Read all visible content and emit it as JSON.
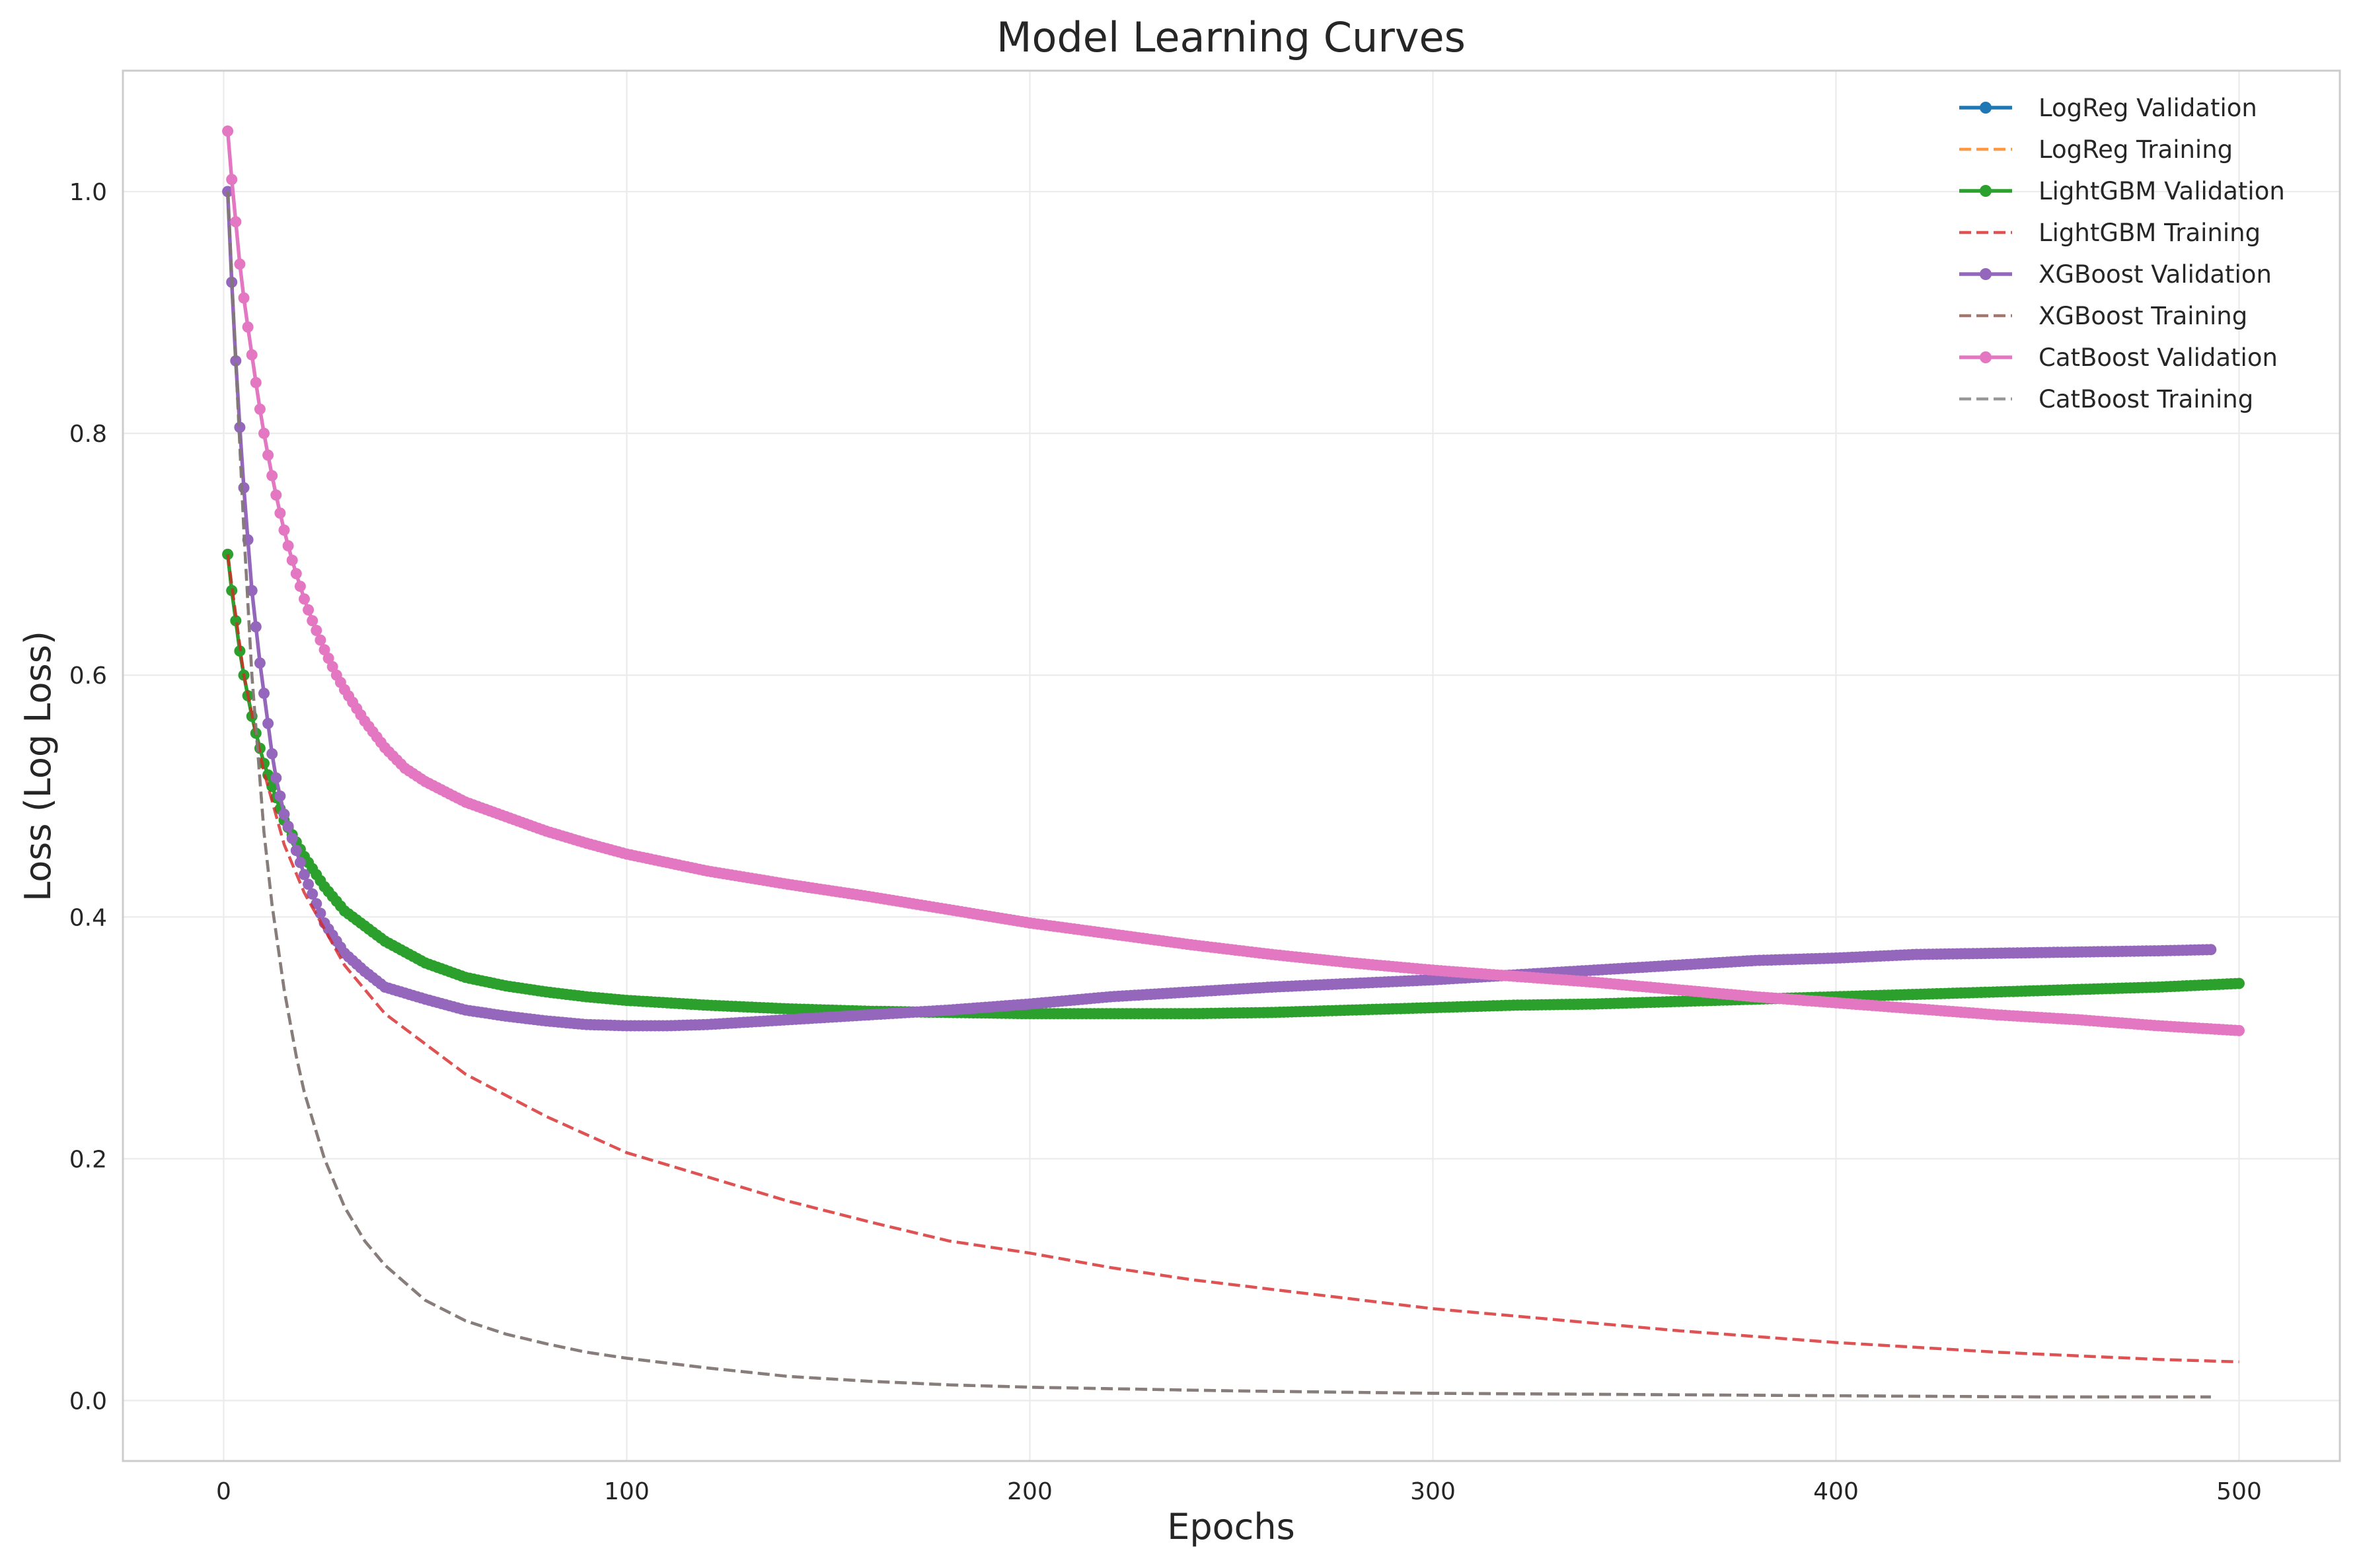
{
  "chart_data": {
    "type": "line",
    "title": "Model Learning Curves",
    "xlabel": "Epochs",
    "ylabel": "Loss (Log Loss)",
    "xlim": [
      -25,
      525
    ],
    "ylim": [
      -0.05,
      1.1
    ],
    "xticks": [
      0,
      100,
      200,
      300,
      400,
      500
    ],
    "xtick_labels": [
      "0",
      "100",
      "200",
      "300",
      "400",
      "500"
    ],
    "yticks": [
      0.0,
      0.2,
      0.4,
      0.6,
      0.8,
      1.0
    ],
    "ytick_labels": [
      "0.0",
      "0.2",
      "0.4",
      "0.6",
      "0.8",
      "1.0"
    ],
    "grid": true,
    "legend_position": "top-right",
    "series": [
      {
        "name": "LogReg Validation",
        "color": "#1f77b4",
        "style": "solid-marker",
        "x": [],
        "y": []
      },
      {
        "name": "LogReg Training",
        "color": "#ff7f0e",
        "style": "dashed",
        "x": [],
        "y": []
      },
      {
        "name": "LightGBM Validation",
        "color": "#2ca02c",
        "style": "solid-marker",
        "x": [
          1,
          2,
          3,
          4,
          5,
          6,
          7,
          8,
          10,
          12,
          15,
          20,
          25,
          30,
          40,
          50,
          60,
          70,
          80,
          90,
          100,
          120,
          140,
          160,
          180,
          200,
          220,
          240,
          260,
          280,
          300,
          320,
          340,
          360,
          380,
          400,
          420,
          440,
          460,
          480,
          500
        ],
        "y": [
          0.7,
          0.67,
          0.645,
          0.62,
          0.6,
          0.583,
          0.566,
          0.552,
          0.527,
          0.508,
          0.48,
          0.45,
          0.425,
          0.405,
          0.38,
          0.362,
          0.35,
          0.343,
          0.338,
          0.334,
          0.331,
          0.327,
          0.324,
          0.322,
          0.321,
          0.32,
          0.32,
          0.32,
          0.321,
          0.323,
          0.325,
          0.327,
          0.328,
          0.33,
          0.332,
          0.334,
          0.336,
          0.338,
          0.34,
          0.342,
          0.345
        ]
      },
      {
        "name": "LightGBM Training",
        "color": "#d62728",
        "style": "dashed",
        "x": [
          1,
          5,
          10,
          15,
          20,
          30,
          40,
          50,
          60,
          80,
          100,
          120,
          140,
          160,
          180,
          200,
          220,
          240,
          260,
          280,
          300,
          320,
          340,
          360,
          380,
          400,
          420,
          440,
          460,
          480,
          500
        ],
        "y": [
          0.7,
          0.6,
          0.52,
          0.46,
          0.42,
          0.36,
          0.32,
          0.295,
          0.27,
          0.235,
          0.205,
          0.185,
          0.165,
          0.148,
          0.132,
          0.122,
          0.11,
          0.1,
          0.092,
          0.084,
          0.076,
          0.07,
          0.064,
          0.058,
          0.053,
          0.048,
          0.044,
          0.04,
          0.037,
          0.034,
          0.032
        ]
      },
      {
        "name": "XGBoost Validation",
        "color": "#9467bd",
        "style": "solid-marker",
        "x": [
          1,
          2,
          3,
          4,
          5,
          6,
          7,
          8,
          9,
          10,
          11,
          12,
          13,
          14,
          15,
          18,
          20,
          25,
          30,
          35,
          40,
          50,
          60,
          70,
          80,
          90,
          100,
          110,
          120,
          140,
          160,
          180,
          200,
          220,
          240,
          260,
          280,
          300,
          320,
          340,
          360,
          380,
          400,
          420,
          440,
          460,
          480,
          493
        ],
        "y": [
          1.0,
          0.925,
          0.86,
          0.805,
          0.755,
          0.712,
          0.67,
          0.64,
          0.61,
          0.585,
          0.56,
          0.535,
          0.515,
          0.5,
          0.485,
          0.455,
          0.435,
          0.395,
          0.37,
          0.355,
          0.342,
          0.332,
          0.323,
          0.318,
          0.314,
          0.311,
          0.31,
          0.31,
          0.311,
          0.315,
          0.319,
          0.323,
          0.328,
          0.334,
          0.338,
          0.342,
          0.345,
          0.348,
          0.352,
          0.356,
          0.36,
          0.364,
          0.366,
          0.369,
          0.37,
          0.371,
          0.372,
          0.373
        ]
      },
      {
        "name": "XGBoost Training",
        "color": "#8c564b",
        "style": "dashed",
        "x": [
          1,
          3,
          5,
          7,
          10,
          12,
          15,
          18,
          20,
          25,
          30,
          35,
          40,
          50,
          60,
          70,
          80,
          90,
          100,
          120,
          140,
          160,
          180,
          200,
          250,
          300,
          350,
          400,
          450,
          493
        ],
        "y": [
          1.0,
          0.86,
          0.72,
          0.6,
          0.47,
          0.41,
          0.34,
          0.285,
          0.255,
          0.2,
          0.16,
          0.132,
          0.112,
          0.083,
          0.066,
          0.055,
          0.047,
          0.04,
          0.035,
          0.027,
          0.02,
          0.016,
          0.013,
          0.011,
          0.008,
          0.006,
          0.005,
          0.004,
          0.003,
          0.003
        ]
      },
      {
        "name": "CatBoost Validation",
        "color": "#e377c2",
        "style": "solid-marker",
        "x": [
          1,
          2,
          3,
          4,
          5,
          6,
          7,
          8,
          9,
          10,
          11,
          12,
          13,
          14,
          15,
          16,
          17,
          18,
          20,
          22,
          25,
          28,
          30,
          35,
          40,
          45,
          50,
          60,
          70,
          80,
          90,
          100,
          120,
          140,
          160,
          180,
          200,
          220,
          240,
          260,
          280,
          300,
          320,
          340,
          360,
          380,
          400,
          420,
          440,
          460,
          480,
          500
        ],
        "y": [
          1.05,
          1.01,
          0.975,
          0.94,
          0.912,
          0.888,
          0.865,
          0.842,
          0.82,
          0.8,
          0.782,
          0.765,
          0.749,
          0.734,
          0.72,
          0.707,
          0.695,
          0.684,
          0.663,
          0.645,
          0.621,
          0.6,
          0.588,
          0.562,
          0.54,
          0.523,
          0.512,
          0.495,
          0.483,
          0.471,
          0.461,
          0.452,
          0.438,
          0.427,
          0.417,
          0.406,
          0.395,
          0.386,
          0.377,
          0.369,
          0.362,
          0.356,
          0.351,
          0.346,
          0.34,
          0.334,
          0.329,
          0.324,
          0.319,
          0.315,
          0.31,
          0.306
        ]
      },
      {
        "name": "CatBoost Training",
        "color": "#7f7f7f",
        "style": "dashed",
        "x": [
          1,
          3,
          5,
          7,
          10,
          12,
          15,
          18,
          20,
          25,
          30,
          35,
          40,
          50,
          60,
          70,
          80,
          90,
          100,
          120,
          140,
          160,
          180,
          200,
          250,
          300,
          350,
          400,
          450,
          493
        ],
        "y": [
          1.0,
          0.86,
          0.72,
          0.6,
          0.47,
          0.41,
          0.34,
          0.285,
          0.255,
          0.2,
          0.16,
          0.132,
          0.112,
          0.083,
          0.066,
          0.055,
          0.047,
          0.04,
          0.035,
          0.027,
          0.02,
          0.016,
          0.013,
          0.011,
          0.008,
          0.006,
          0.005,
          0.004,
          0.003,
          0.003
        ]
      }
    ]
  }
}
